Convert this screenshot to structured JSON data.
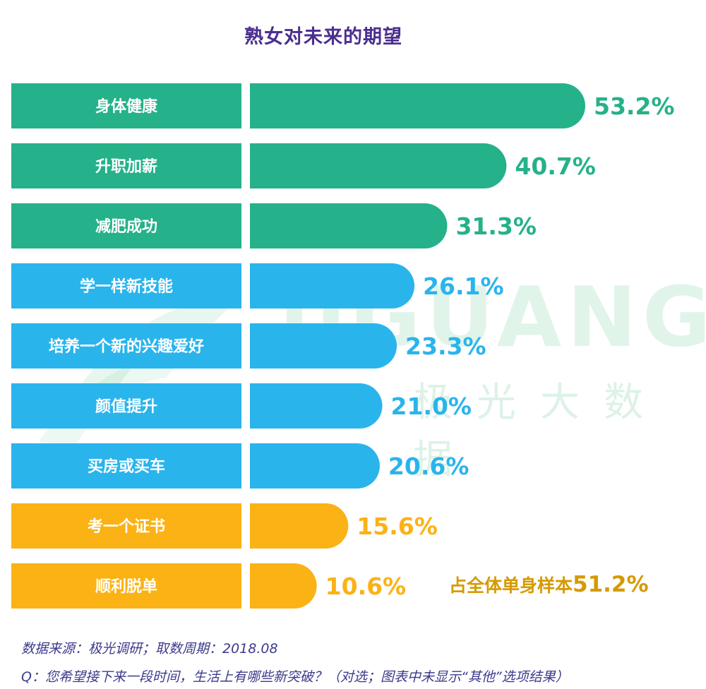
{
  "title": "熟女对未来的期望",
  "watermark": {
    "word": "JIGUANG",
    "cn": "极光大数据"
  },
  "colors": {
    "green": "#25b18a",
    "blue": "#2ab4ec",
    "orange": "#fbb215",
    "title": "#4b2f8f",
    "note": "#d59a00",
    "footer": "#3b3a8c"
  },
  "chart_data": {
    "type": "bar",
    "orientation": "horizontal",
    "title": "熟女对未来的期望",
    "categories": [
      "身体健康",
      "升职加薪",
      "减肥成功",
      "学一样新技能",
      "培养一个新的兴趣爱好",
      "颜值提升",
      "买房或买车",
      "考一个证书",
      "顺利脱单"
    ],
    "values": [
      53.2,
      40.7,
      31.3,
      26.1,
      23.3,
      21.0,
      20.6,
      15.6,
      10.6
    ],
    "value_labels": [
      "53.2%",
      "40.7%",
      "31.3%",
      "26.1%",
      "23.3%",
      "21.0%",
      "20.6%",
      "15.6%",
      "10.6%"
    ],
    "groups": [
      "green",
      "green",
      "green",
      "blue",
      "blue",
      "blue",
      "blue",
      "orange",
      "orange"
    ],
    "unit": "%",
    "grid": false,
    "legend": "none"
  },
  "note": {
    "text": "占全体单身样本",
    "value": "51.2%"
  },
  "footer": {
    "source": "数据来源：极光调研；取数周期：2018.08",
    "question": "Q：您希望接下来一段时间，生活上有哪些新突破？（对选；图表中未显示“其他”选项结果）"
  }
}
